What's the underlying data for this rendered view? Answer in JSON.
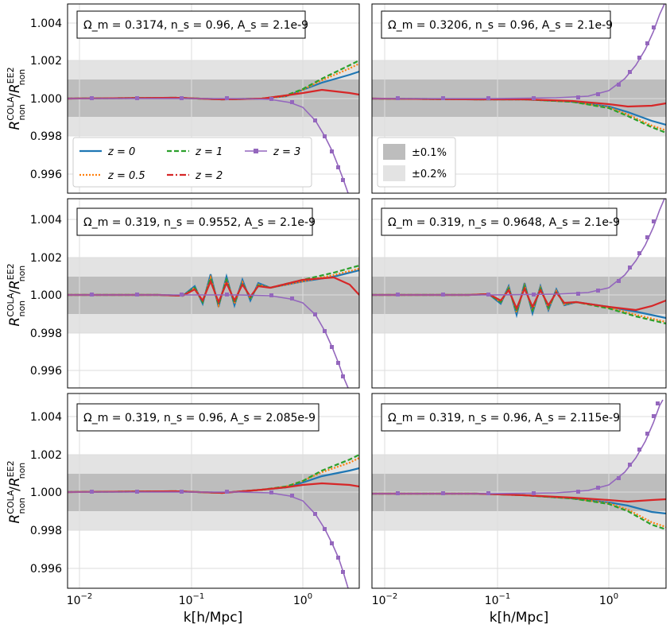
{
  "figure": {
    "ylabel_main": "R",
    "ylabel_sub": "non",
    "ylabel_sup1": "COLA",
    "ylabel_sup2": "EE2",
    "xlabel": "k[h/Mpc]",
    "y_ticks": [
      "1.004",
      "1.002",
      "1.000",
      "0.998",
      "0.996"
    ],
    "x_ticks": [
      {
        "base": "10",
        "exp": "−2"
      },
      {
        "base": "10",
        "exp": "−1"
      },
      {
        "base": "10",
        "exp": "0"
      }
    ]
  },
  "colors": {
    "z0": "#1f77b4",
    "z0_5": "#ff7f0e",
    "z1": "#2ca02c",
    "z2": "#d62728",
    "z3": "#9467bd",
    "band1": "#bdbdbd",
    "band2": "#e3e3e3",
    "grid": "#dddddd"
  },
  "legend": {
    "series": [
      {
        "key": "z0",
        "label": "z = 0",
        "style": "solid"
      },
      {
        "key": "z1",
        "label": "z = 1",
        "style": "dashed"
      },
      {
        "key": "z3",
        "label": "z = 3",
        "style": "marker"
      },
      {
        "key": "z0_5",
        "label": "z = 0.5",
        "style": "dotted"
      },
      {
        "key": "z2",
        "label": "z = 2",
        "style": "dashdot"
      }
    ],
    "bands": [
      {
        "label": "±0.1%"
      },
      {
        "label": "±0.2%"
      }
    ]
  },
  "panels": [
    {
      "title": "Ω_m = 0.3174, n_s = 0.96, A_s = 2.1e-9"
    },
    {
      "title": "Ω_m = 0.3206, n_s = 0.96, A_s = 2.1e-9"
    },
    {
      "title": "Ω_m = 0.319, n_s = 0.9552, A_s = 2.1e-9"
    },
    {
      "title": "Ω_m = 0.319, n_s = 0.9648, A_s = 2.1e-9"
    },
    {
      "title": "Ω_m = 0.319, n_s = 0.96, A_s = 2.085e-9"
    },
    {
      "title": "Ω_m = 0.319, n_s = 0.96, A_s = 2.115e-9"
    }
  ],
  "chart_data": {
    "type": "line",
    "xscale": "log",
    "xlim": [
      0.008,
      3.2
    ],
    "ylim": [
      0.995,
      1.005
    ],
    "bands": [
      {
        "label": "±0.1%",
        "range": [
          0.999,
          1.001
        ]
      },
      {
        "label": "±0.2%",
        "range": [
          0.998,
          1.002
        ]
      }
    ],
    "grid": true,
    "panels": [
      {
        "series": [
          {
            "name": "z = 0",
            "x": [
              0.008,
              0.1,
              0.5,
              1.0,
              2.0,
              3.0
            ],
            "y": [
              1.0,
              1.0,
              1.0003,
              1.0006,
              1.0011,
              1.0014
            ]
          },
          {
            "name": "z = 0.5",
            "x": [
              0.008,
              0.1,
              0.5,
              1.0,
              2.0,
              3.0
            ],
            "y": [
              1.0,
              1.0,
              1.0003,
              1.0007,
              1.0013,
              1.0017
            ]
          },
          {
            "name": "z = 1",
            "x": [
              0.008,
              0.1,
              0.5,
              1.0,
              2.0,
              3.0
            ],
            "y": [
              1.0,
              1.0,
              1.0003,
              1.0007,
              1.0014,
              1.0019
            ]
          },
          {
            "name": "z = 2",
            "x": [
              0.008,
              0.1,
              0.5,
              1.0,
              2.0,
              3.0
            ],
            "y": [
              1.0,
              1.0,
              1.0002,
              1.0004,
              1.0004,
              1.0002
            ]
          },
          {
            "name": "z = 3",
            "x": [
              0.008,
              0.1,
              0.5,
              1.0,
              1.5,
              2.0,
              2.5,
              3.0
            ],
            "y": [
              1.0,
              1.0,
              1.0,
              0.9995,
              0.9985,
              0.9972,
              0.9958,
              0.9945
            ]
          }
        ]
      },
      {
        "series": [
          {
            "name": "z = 0",
            "x": [
              0.008,
              0.1,
              0.5,
              1.0,
              2.0,
              3.0
            ],
            "y": [
              1.0,
              1.0,
              0.9998,
              0.9995,
              0.9989,
              0.9986
            ]
          },
          {
            "name": "z = 0.5",
            "x": [
              0.008,
              0.1,
              0.5,
              1.0,
              2.0,
              3.0
            ],
            "y": [
              1.0,
              1.0,
              0.9998,
              0.9995,
              0.9988,
              0.9983
            ]
          },
          {
            "name": "z = 1",
            "x": [
              0.008,
              0.1,
              0.5,
              1.0,
              2.0,
              3.0
            ],
            "y": [
              1.0,
              1.0,
              0.9998,
              0.9995,
              0.9987,
              0.9982
            ]
          },
          {
            "name": "z = 2",
            "x": [
              0.008,
              0.1,
              0.5,
              1.0,
              2.0,
              3.0
            ],
            "y": [
              1.0,
              1.0,
              0.9998,
              0.9997,
              0.9995,
              0.9997
            ]
          },
          {
            "name": "z = 3",
            "x": [
              0.008,
              0.1,
              0.5,
              1.0,
              1.5,
              2.0,
              2.5,
              3.0
            ],
            "y": [
              1.0,
              1.0,
              1.0,
              1.0004,
              1.001,
              1.0022,
              1.0038,
              1.0055
            ]
          }
        ]
      },
      {
        "series": [
          {
            "name": "z = 0",
            "x": [
              0.008,
              0.1,
              0.5,
              1.0,
              2.0,
              3.0
            ],
            "y": [
              1.0,
              1.0,
              1.0005,
              1.0007,
              1.001,
              1.0013
            ]
          },
          {
            "name": "z = 0.5",
            "x": [
              0.008,
              0.1,
              0.5,
              1.0,
              2.0,
              3.0
            ],
            "y": [
              1.0,
              1.0,
              1.0005,
              1.0007,
              1.0011,
              1.0014
            ]
          },
          {
            "name": "z = 1",
            "x": [
              0.008,
              0.1,
              0.5,
              1.0,
              2.0,
              3.0
            ],
            "y": [
              1.0,
              1.0,
              1.0005,
              1.0008,
              1.0012,
              1.0016
            ]
          },
          {
            "name": "z = 2",
            "x": [
              0.008,
              0.1,
              0.5,
              1.0,
              2.0,
              3.0
            ],
            "y": [
              1.0,
              1.0,
              1.0005,
              1.0008,
              1.0008,
              1.0001
            ]
          },
          {
            "name": "z = 3",
            "x": [
              0.008,
              0.1,
              0.5,
              1.0,
              1.5,
              2.0,
              2.5,
              3.0
            ],
            "y": [
              1.0,
              1.0,
              1.0,
              0.9996,
              0.9987,
              0.9972,
              0.9958,
              0.9946
            ]
          }
        ]
      },
      {
        "series": [
          {
            "name": "z = 0",
            "x": [
              0.008,
              0.1,
              0.5,
              1.0,
              2.0,
              3.0
            ],
            "y": [
              1.0,
              1.0,
              0.9996,
              0.9994,
              0.999,
              0.9986
            ]
          },
          {
            "name": "z = 0.5",
            "x": [
              0.008,
              0.1,
              0.5,
              1.0,
              2.0,
              3.0
            ],
            "y": [
              1.0,
              1.0,
              0.9996,
              0.9994,
              0.9989,
              0.9985
            ]
          },
          {
            "name": "z = 1",
            "x": [
              0.008,
              0.1,
              0.5,
              1.0,
              2.0,
              3.0
            ],
            "y": [
              1.0,
              1.0,
              0.9996,
              0.9993,
              0.9988,
              0.9984
            ]
          },
          {
            "name": "z = 2",
            "x": [
              0.008,
              0.1,
              0.5,
              1.0,
              2.0,
              3.0
            ],
            "y": [
              1.0,
              1.0,
              0.9996,
              0.9994,
              0.9994,
              0.9999
            ]
          },
          {
            "name": "z = 3",
            "x": [
              0.008,
              0.1,
              0.5,
              1.0,
              1.5,
              2.0,
              2.5,
              3.0
            ],
            "y": [
              1.0,
              1.0,
              1.0,
              1.0002,
              1.001,
              1.0024,
              1.004,
              1.0055
            ]
          }
        ]
      },
      {
        "series": [
          {
            "name": "z = 0",
            "x": [
              0.008,
              0.1,
              0.5,
              1.0,
              2.0,
              3.0
            ],
            "y": [
              1.0,
              1.0,
              1.0002,
              1.0005,
              1.001,
              1.0013
            ]
          },
          {
            "name": "z = 0.5",
            "x": [
              0.008,
              0.1,
              0.5,
              1.0,
              2.0,
              3.0
            ],
            "y": [
              1.0,
              1.0,
              1.0002,
              1.0006,
              1.0013,
              1.0018
            ]
          },
          {
            "name": "z = 1",
            "x": [
              0.008,
              0.1,
              0.5,
              1.0,
              2.0,
              3.0
            ],
            "y": [
              1.0,
              1.0,
              1.0002,
              1.0006,
              1.0014,
              1.002
            ]
          },
          {
            "name": "z = 2",
            "x": [
              0.008,
              0.1,
              0.5,
              1.0,
              2.0,
              3.0
            ],
            "y": [
              1.0,
              1.0,
              1.0002,
              1.0004,
              1.0004,
              1.0003
            ]
          },
          {
            "name": "z = 3",
            "x": [
              0.008,
              0.1,
              0.5,
              1.0,
              1.5,
              2.0,
              2.5,
              3.0
            ],
            "y": [
              1.0,
              1.0,
              1.0,
              0.9996,
              0.9986,
              0.9972,
              0.9958,
              0.9948
            ]
          }
        ]
      },
      {
        "series": [
          {
            "name": "z = 0",
            "x": [
              0.008,
              0.1,
              0.5,
              1.0,
              2.0,
              3.0
            ],
            "y": [
              1.0,
              1.0,
              0.9998,
              0.9994,
              0.999,
              0.9988
            ]
          },
          {
            "name": "z = 0.5",
            "x": [
              0.008,
              0.1,
              0.5,
              1.0,
              2.0,
              3.0
            ],
            "y": [
              1.0,
              1.0,
              0.9998,
              0.9994,
              0.9987,
              0.9981
            ]
          },
          {
            "name": "z = 1",
            "x": [
              0.008,
              0.1,
              0.5,
              1.0,
              2.0,
              3.0
            ],
            "y": [
              1.0,
              1.0,
              0.9998,
              0.9994,
              0.9986,
              0.998
            ]
          },
          {
            "name": "z = 2",
            "x": [
              0.008,
              0.1,
              0.5,
              1.0,
              2.0,
              3.0
            ],
            "y": [
              1.0,
              1.0,
              0.9998,
              0.9996,
              0.9995,
              0.9996
            ]
          },
          {
            "name": "z = 3",
            "x": [
              0.008,
              0.1,
              0.5,
              1.0,
              1.5,
              2.0,
              2.5,
              3.0
            ],
            "y": [
              1.0,
              1.0,
              1.0,
              1.0003,
              1.0012,
              1.0026,
              1.0042,
              1.0048
            ]
          }
        ]
      }
    ]
  }
}
